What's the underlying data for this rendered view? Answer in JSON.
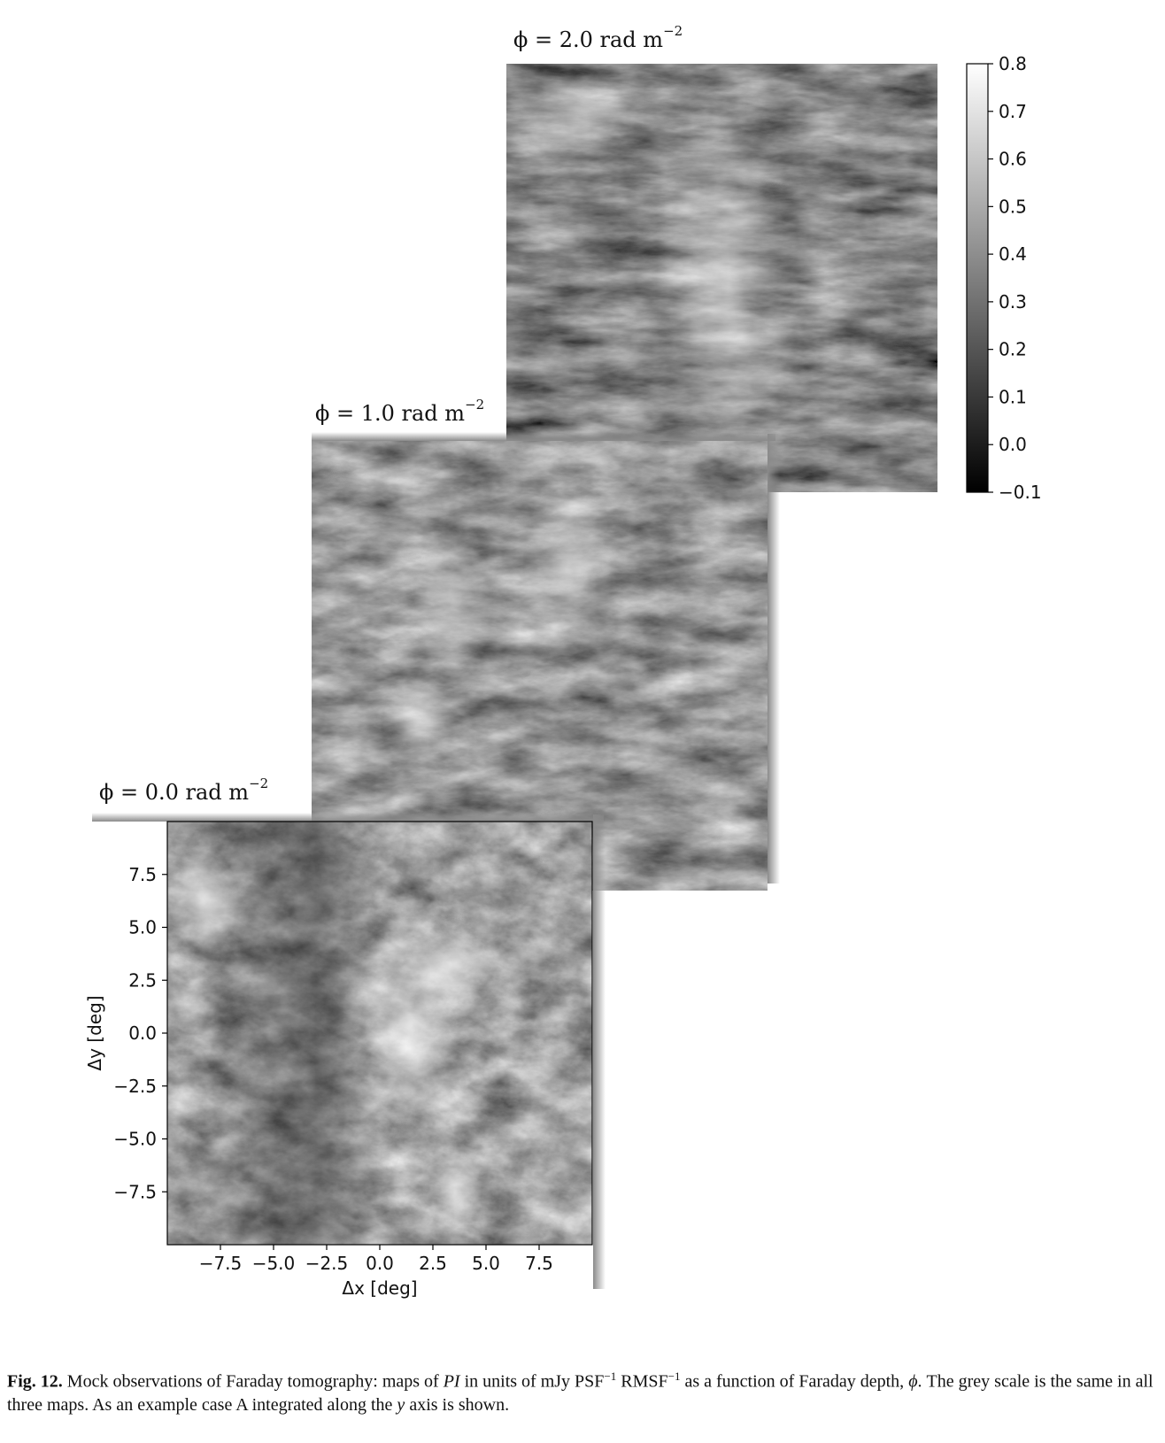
{
  "panels": [
    {
      "phi_label": "ϕ = 2.0 rad m",
      "exponent": "−2"
    },
    {
      "phi_label": "ϕ = 1.0 rad m",
      "exponent": "−2"
    },
    {
      "phi_label": "ϕ = 0.0 rad m",
      "exponent": "−2"
    }
  ],
  "colorbar": {
    "ticks": [
      "0.8",
      "0.7",
      "0.6",
      "0.5",
      "0.4",
      "0.3",
      "0.2",
      "0.1",
      "0.0",
      "−0.1"
    ],
    "range": [
      -0.1,
      0.8
    ],
    "colormap": "grey"
  },
  "axes": {
    "xlabel": "Δx [deg]",
    "ylabel": "Δy [deg]",
    "xticks": [
      "−7.5",
      "−5.0",
      "−2.5",
      "0.0",
      "2.5",
      "5.0",
      "7.5"
    ],
    "yticks": [
      "7.5",
      "5.0",
      "2.5",
      "0.0",
      "−2.5",
      "−5.0",
      "−7.5"
    ]
  },
  "caption": {
    "label": "Fig. 12.",
    "t1": " Mock observations of Faraday tomography: maps of ",
    "pi": "PI",
    "t2": " in units of mJy PSF",
    "sup1": "−1",
    "t3": " RMSF",
    "sup2": "−1",
    "t4": " as a function of Faraday depth, ",
    "phi": "ϕ",
    "t5": ". The grey scale is the same in all three maps. As an example case A integrated along the ",
    "y": "y",
    "t6": " axis is shown."
  }
}
